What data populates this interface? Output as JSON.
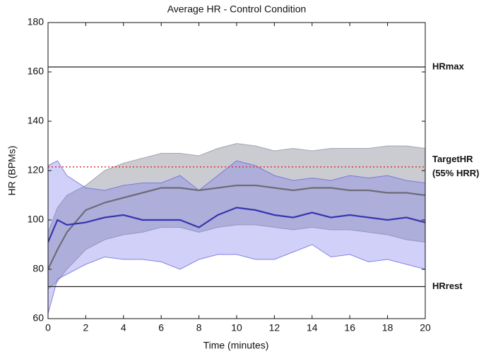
{
  "chart_data": {
    "type": "line",
    "title": "Average HR - Control Condition",
    "xlabel": "Time (minutes)",
    "ylabel": "HR (BPMs)",
    "x": [
      0,
      0.5,
      1,
      2,
      3,
      4,
      5,
      6,
      7,
      8,
      9,
      10,
      11,
      12,
      13,
      14,
      15,
      16,
      17,
      18,
      19,
      20
    ],
    "bands": [
      {
        "color": "rgba(140,140,155,0.45)",
        "edge": "rgba(140,140,155,0.7)",
        "upper": [
          95,
          105,
          110,
          114,
          120,
          123,
          125,
          127,
          127,
          126,
          129,
          131,
          130,
          128,
          129,
          128,
          129,
          129,
          129,
          130,
          130,
          129
        ],
        "lower": [
          72,
          75,
          80,
          88,
          92,
          94,
          95,
          97,
          97,
          95,
          97,
          98,
          98,
          97,
          96,
          97,
          96,
          96,
          95,
          94,
          92,
          91
        ]
      },
      {
        "color": "rgba(120,120,235,0.35)",
        "edge": "rgba(100,100,220,0.75)",
        "upper": [
          122,
          124,
          118,
          113,
          112,
          114,
          115,
          115,
          118,
          112,
          118,
          124,
          122,
          118,
          116,
          117,
          116,
          118,
          117,
          118,
          116,
          115
        ],
        "lower": [
          62,
          76,
          78,
          82,
          85,
          84,
          84,
          83,
          80,
          84,
          86,
          86,
          84,
          84,
          87,
          90,
          85,
          86,
          83,
          84,
          82,
          80
        ]
      }
    ],
    "series": [
      {
        "color": "#6c6c78",
        "values": [
          80,
          88,
          95,
          104,
          107,
          109,
          111,
          113,
          113,
          112,
          113,
          114,
          114,
          113,
          112,
          113,
          113,
          112,
          112,
          111,
          111,
          110
        ]
      },
      {
        "color": "#3636b0",
        "values": [
          91,
          100,
          98,
          99,
          101,
          102,
          100,
          100,
          100,
          97,
          102,
          105,
          104,
          102,
          101,
          103,
          101,
          102,
          101,
          100,
          101,
          99
        ]
      }
    ],
    "hlines": [
      {
        "value": 162,
        "label": [
          "HRmax"
        ],
        "color": "#222",
        "style": "solid"
      },
      {
        "value": 121.5,
        "label": [
          "TargetHR",
          "(55% HRR)"
        ],
        "color": "#e03030",
        "style": "dotted"
      },
      {
        "value": 73,
        "label": [
          "HRrest"
        ],
        "color": "#222",
        "style": "solid"
      }
    ],
    "xlim": [
      0,
      20
    ],
    "xticks": [
      0,
      2,
      4,
      6,
      8,
      10,
      12,
      14,
      16,
      18,
      20
    ],
    "ylim": [
      60,
      180
    ],
    "yticks": [
      60,
      80,
      100,
      120,
      140,
      160,
      180
    ],
    "grid": false
  }
}
